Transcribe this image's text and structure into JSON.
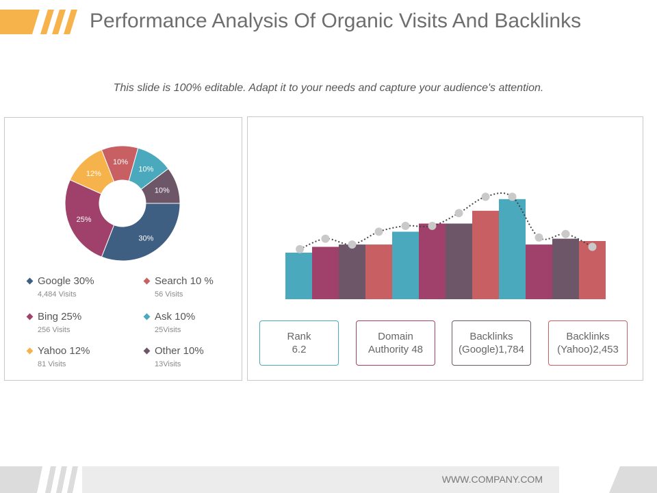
{
  "header": {
    "title": "Performance Analysis Of Organic Visits And Backlinks",
    "subtitle": "This slide is 100% editable. Adapt it to your needs and capture your audience's attention."
  },
  "colors": {
    "orange": "#f7b34b",
    "teal": "#4aa9bd",
    "plum": "#a0416b",
    "purple": "#6e5669",
    "red": "#c85f62",
    "navy": "#3f5f82"
  },
  "legend": [
    {
      "label": "Google 30%",
      "sub": "4,484 Visits",
      "color": "#3f5f82"
    },
    {
      "label": "Search 10 %",
      "sub": "56 Visits",
      "color": "#c85f62"
    },
    {
      "label": "Bing 25%",
      "sub": "256 Visits",
      "color": "#a0416b"
    },
    {
      "label": "Ask 10%",
      "sub": "25Visits",
      "color": "#4aa9bd"
    },
    {
      "label": "Yahoo 12%",
      "sub": "81 Visits",
      "color": "#f7b34b"
    },
    {
      "label": "Other 10%",
      "sub": "13Visits",
      "color": "#6e5669"
    }
  ],
  "stats": [
    {
      "line1": "Rank",
      "line2": "6.2",
      "color": "#4aa9bd"
    },
    {
      "line1": "Domain",
      "line2": "Authority 48",
      "color": "#a0416b"
    },
    {
      "line1": "Backlinks",
      "line2": "(Google)1,784",
      "color": "#6e5669"
    },
    {
      "line1": "Backlinks",
      "line2": "(Yahoo)2,453",
      "color": "#c85f62"
    }
  ],
  "footer": {
    "url": "WWW.COMPANY.COM"
  },
  "chart_data": [
    {
      "type": "pie",
      "donut": true,
      "labels": [
        "Google",
        "Bing",
        "Yahoo",
        "Search",
        "Ask",
        "Other"
      ],
      "values": [
        30,
        25,
        12,
        10,
        10,
        10
      ],
      "slice_labels": [
        "30%",
        "25%",
        "12%",
        "10%",
        "10%",
        "10%"
      ],
      "colors": [
        "#3f5f82",
        "#a0416b",
        "#f7b34b",
        "#c85f62",
        "#4aa9bd",
        "#6e5669"
      ]
    },
    {
      "type": "bar",
      "with_line": true,
      "bars": [
        40,
        45,
        47,
        47,
        58,
        65,
        65,
        76,
        86,
        47,
        52,
        50
      ],
      "bar_colors": [
        "#4aa9bd",
        "#a0416b",
        "#6e5669",
        "#c85f62",
        "#4aa9bd",
        "#a0416b",
        "#6e5669",
        "#c85f62",
        "#4aa9bd",
        "#a0416b",
        "#6e5669",
        "#c85f62"
      ],
      "line_points": [
        43,
        52,
        47,
        58,
        63,
        63,
        74,
        88,
        88,
        53,
        56,
        45
      ],
      "ylim": [
        0,
        100
      ]
    }
  ]
}
